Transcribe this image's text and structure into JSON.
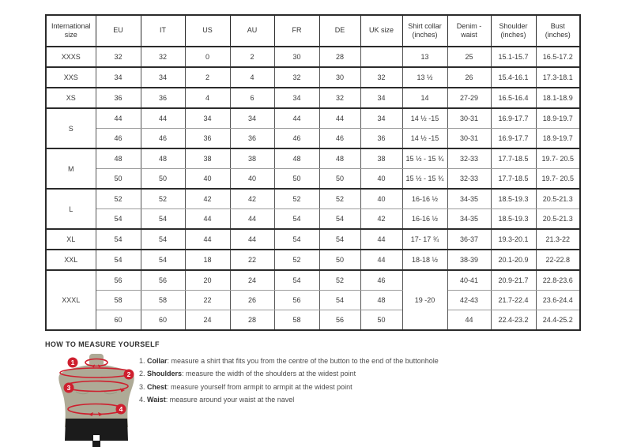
{
  "table": {
    "headers": [
      "International size",
      "EU",
      "IT",
      "US",
      "AU",
      "FR",
      "DE",
      "UK size",
      "Shirt collar (inches)",
      "Denim - waist",
      "Shoulder (inches)",
      "Bust (inches)"
    ],
    "groups": [
      {
        "label": "XXXS",
        "merge_collar": false,
        "rows": [
          [
            "32",
            "32",
            "0",
            "2",
            "30",
            "28",
            "",
            "13",
            "25",
            "15.1-15.7",
            "16.5-17.2"
          ]
        ]
      },
      {
        "label": "XXS",
        "merge_collar": false,
        "rows": [
          [
            "34",
            "34",
            "2",
            "4",
            "32",
            "30",
            "32",
            "13 ½",
            "26",
            "15.4-16.1",
            "17.3-18.1"
          ]
        ]
      },
      {
        "label": "XS",
        "merge_collar": false,
        "rows": [
          [
            "36",
            "36",
            "4",
            "6",
            "34",
            "32",
            "34",
            "14",
            "27-29",
            "16.5-16.4",
            "18.1-18.9"
          ]
        ]
      },
      {
        "label": "S",
        "merge_collar": false,
        "rows": [
          [
            "44",
            "44",
            "34",
            "34",
            "44",
            "44",
            "34",
            "14 ½ -15",
            "30-31",
            "16.9-17.7",
            "18.9-19.7"
          ],
          [
            "46",
            "46",
            "36",
            "36",
            "46",
            "46",
            "36",
            "14 ½ -15",
            "30-31",
            "16.9-17.7",
            "18.9-19.7"
          ]
        ]
      },
      {
        "label": "M",
        "merge_collar": false,
        "rows": [
          [
            "48",
            "48",
            "38",
            "38",
            "48",
            "48",
            "38",
            "15 ½ - 15 ¾",
            "32-33",
            "17.7-18.5",
            "19.7- 20.5"
          ],
          [
            "50",
            "50",
            "40",
            "40",
            "50",
            "50",
            "40",
            "15 ½ - 15 ¾",
            "32-33",
            "17.7-18.5",
            "19.7- 20.5"
          ]
        ]
      },
      {
        "label": "L",
        "merge_collar": false,
        "rows": [
          [
            "52",
            "52",
            "42",
            "42",
            "52",
            "52",
            "40",
            "16-16 ½",
            "34-35",
            "18.5-19.3",
            "20.5-21.3"
          ],
          [
            "54",
            "54",
            "44",
            "44",
            "54",
            "54",
            "42",
            "16-16 ½",
            "34-35",
            "18.5-19.3",
            "20.5-21.3"
          ]
        ]
      },
      {
        "label": "XL",
        "merge_collar": false,
        "rows": [
          [
            "54",
            "54",
            "44",
            "44",
            "54",
            "54",
            "44",
            "17- 17 ¾",
            "36-37",
            "19.3-20.1",
            "21.3-22"
          ]
        ]
      },
      {
        "label": "XXL",
        "merge_collar": false,
        "rows": [
          [
            "54",
            "54",
            "18",
            "22",
            "52",
            "50",
            "44",
            "18-18 ½",
            "38-39",
            "20.1-20.9",
            "22-22.8"
          ]
        ]
      },
      {
        "label": "XXXL",
        "merge_collar": true,
        "rows": [
          [
            "56",
            "56",
            "20",
            "24",
            "54",
            "52",
            "46",
            "19 -20",
            "40-41",
            "20.9-21.7",
            "22.8-23.6"
          ],
          [
            "58",
            "58",
            "22",
            "26",
            "56",
            "54",
            "48",
            "",
            "42-43",
            "21.7-22.4",
            "23.6-24.4"
          ],
          [
            "60",
            "60",
            "24",
            "28",
            "58",
            "56",
            "50",
            "",
            "44",
            "22.4-23.2",
            "24.4-25.2"
          ]
        ]
      }
    ]
  },
  "guide": {
    "title": "HOW TO MEASURE YOURSELF",
    "items": [
      {
        "num": "1.",
        "term": "Collar",
        "text": ": measure a shirt that fits you from the centre of the button to the end of the buttonhole"
      },
      {
        "num": "2.",
        "term": "Shoulders",
        "text": ": measure the width of the shoulders at the widest point"
      },
      {
        "num": "3.",
        "term": "Chest",
        "text": ": measure yourself from armpit to armpit at the widest point"
      },
      {
        "num": "4.",
        "term": "Waist",
        "text": ": measure around your waist at the navel"
      }
    ],
    "markers": [
      "1",
      "2",
      "3",
      "4"
    ]
  },
  "colors": {
    "accent_red": "#ce1f2e",
    "torso": "#aeaa96",
    "shorts": "#1b1b1b",
    "border_dark": "#2b2b2b",
    "border_light": "#9c9c9c",
    "text": "#3a3a3a"
  }
}
